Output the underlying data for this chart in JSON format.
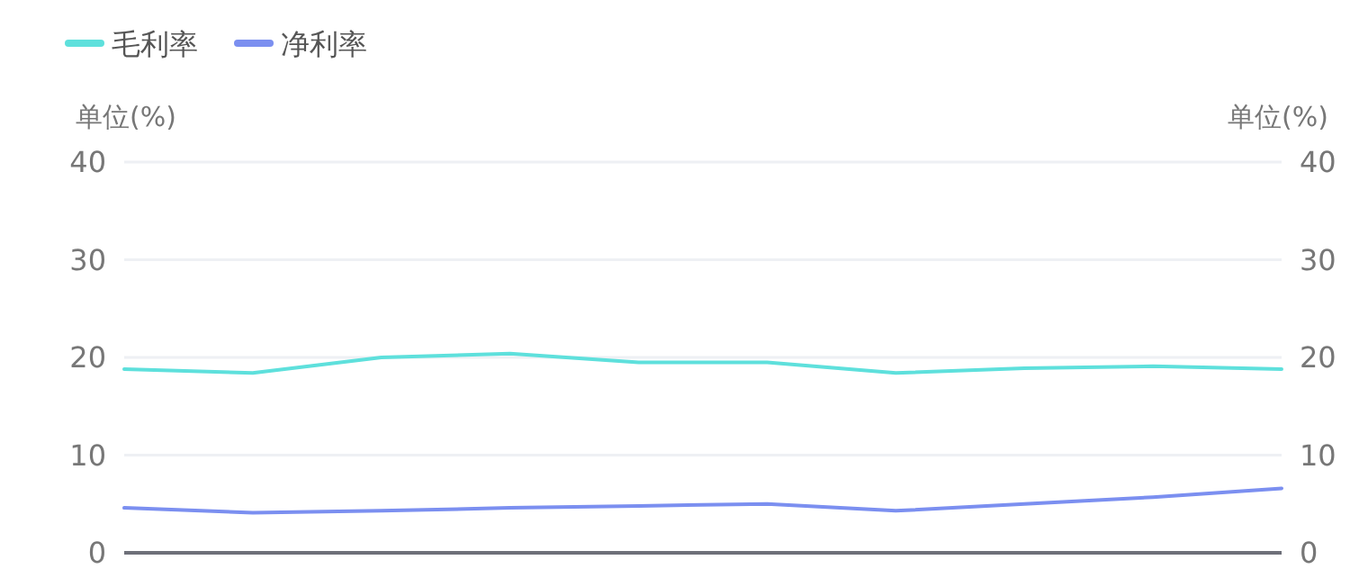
{
  "chart_data": {
    "type": "line",
    "categories": [
      null,
      null,
      null,
      null,
      null,
      null,
      null,
      null,
      null,
      null
    ],
    "series": [
      {
        "name": "毛利率",
        "color": "#5ee0dc",
        "values": [
          18.8,
          18.4,
          20.0,
          20.4,
          19.5,
          19.5,
          18.4,
          18.9,
          19.1,
          18.8
        ]
      },
      {
        "name": "净利率",
        "color": "#7b8ff0",
        "values": [
          4.6,
          4.1,
          4.3,
          4.6,
          4.8,
          5.0,
          4.3,
          5.0,
          5.7,
          6.6
        ]
      }
    ],
    "ylabel": "单位(%)",
    "y2label": "单位(%)",
    "ylim": [
      0,
      40
    ],
    "yticks": [
      0,
      10,
      20,
      30,
      40
    ],
    "y2lim": [
      0,
      40
    ],
    "y2ticks": [
      0,
      10,
      20,
      30,
      40
    ],
    "grid": "y",
    "legend": "top left",
    "marker": "none",
    "line_style": "solid"
  }
}
